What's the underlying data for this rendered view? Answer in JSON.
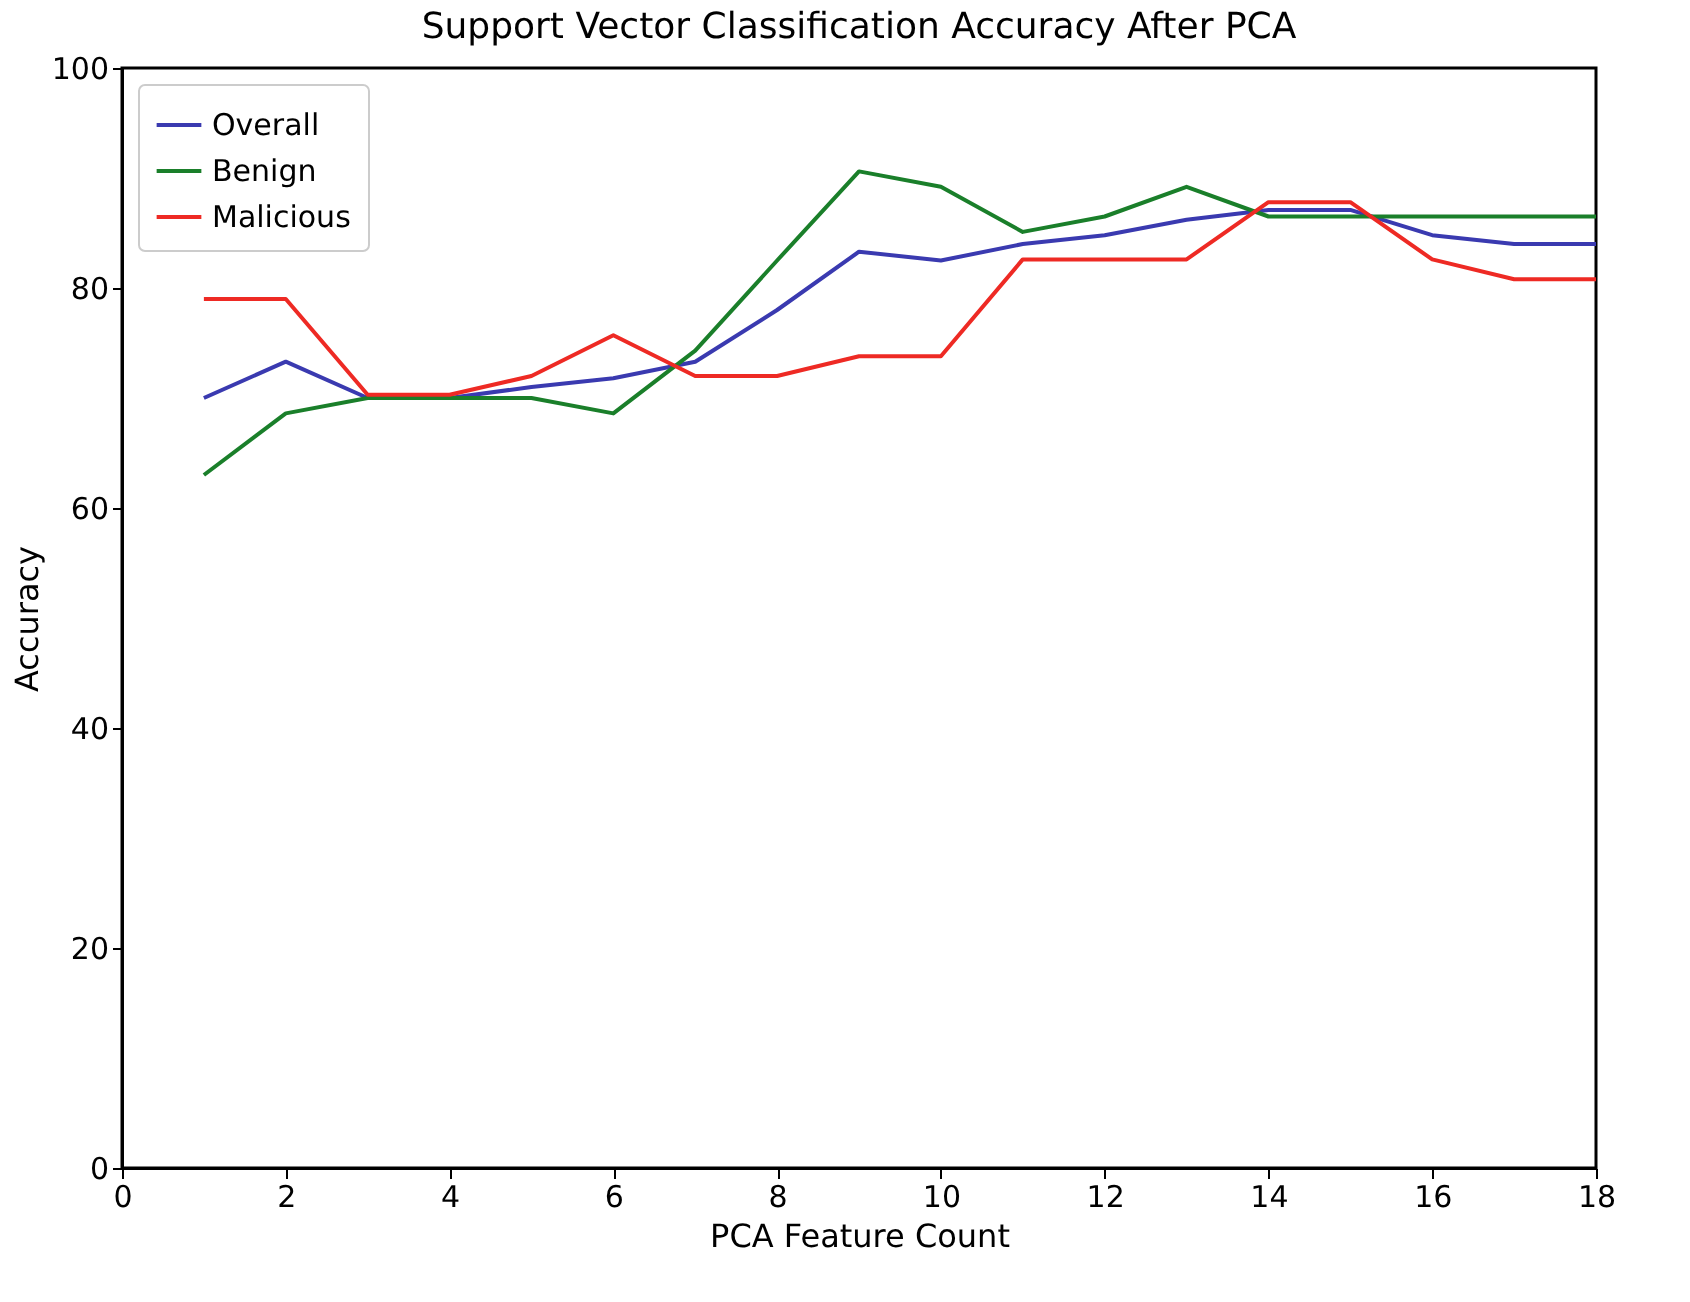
{
  "chart_data": {
    "type": "line",
    "title": "Support Vector Classification Accuracy After PCA",
    "xlabel": "PCA Feature Count",
    "ylabel": "Accuracy",
    "x": [
      1,
      2,
      3,
      4,
      5,
      6,
      7,
      8,
      9,
      10,
      11,
      12,
      13,
      14,
      15,
      16,
      17,
      18
    ],
    "series": [
      {
        "name": "Overall",
        "color": "#3a3ab0",
        "values": [
          70,
          73.3,
          70,
          70,
          71,
          71.8,
          73.3,
          78,
          83.3,
          82.5,
          84,
          84.8,
          86.2,
          87.1,
          87.1,
          84.8,
          84,
          84
        ]
      },
      {
        "name": "Benign",
        "color": "#1a7f2a",
        "values": [
          63,
          68.6,
          70,
          70,
          70,
          68.6,
          74.3,
          82.5,
          90.6,
          89.2,
          85.1,
          86.5,
          89.2,
          86.5,
          86.5,
          86.5,
          86.5,
          86.5
        ]
      },
      {
        "name": "Malicious",
        "color": "#ee2a24",
        "values": [
          79,
          79,
          70.3,
          70.3,
          72,
          75.7,
          72,
          72,
          73.8,
          73.8,
          82.6,
          82.6,
          82.6,
          87.8,
          87.8,
          82.6,
          80.8,
          80.8
        ]
      }
    ],
    "xlim": [
      0,
      18
    ],
    "xticks": [
      0,
      2,
      4,
      6,
      8,
      10,
      12,
      14,
      16,
      18
    ],
    "ylim": [
      0,
      100
    ],
    "yticks": [
      0,
      20,
      40,
      60,
      80,
      100
    ],
    "grid": false,
    "legend": "top left",
    "marker": "none",
    "line_style": "solid"
  }
}
